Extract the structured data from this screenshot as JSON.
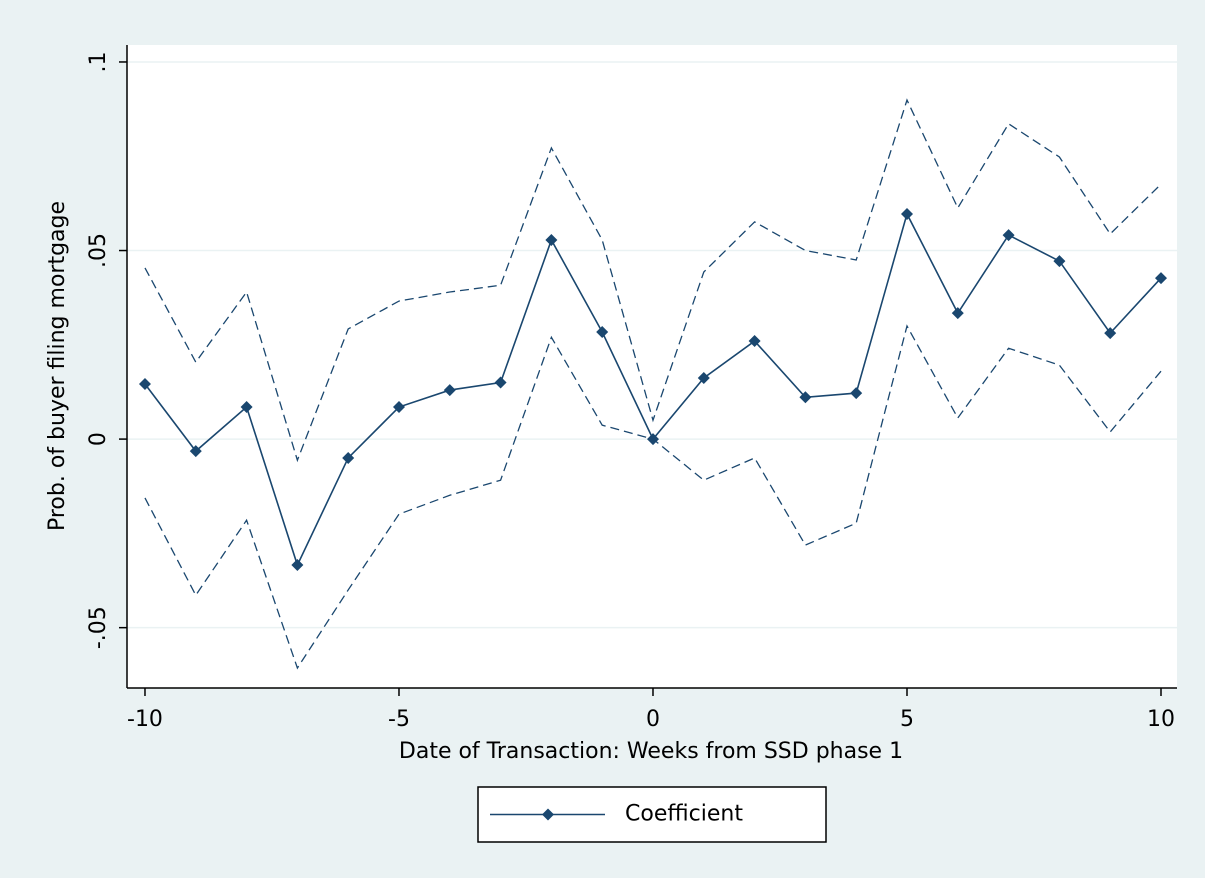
{
  "chart_data": {
    "type": "line",
    "x_label": "Date of Transaction: Weeks from SSD phase 1",
    "y_label": "Prob. of buyer filing mortgage",
    "x": [
      -10,
      -9,
      -8,
      -7,
      -6,
      -5,
      -4,
      -3,
      -2,
      -1,
      0,
      1,
      2,
      3,
      4,
      5,
      6,
      7,
      8,
      9,
      10
    ],
    "series": [
      {
        "name": "Coefficient",
        "color": "#1a476f",
        "marker": "diamond",
        "dashed": false,
        "values": [
          0.0146,
          -0.0032,
          0.0085,
          -0.0334,
          -0.005,
          0.0085,
          0.013,
          0.015,
          0.0528,
          0.0284,
          0,
          0.0162,
          0.026,
          0.0111,
          0.0122,
          0.0597,
          0.0334,
          0.0541,
          0.0472,
          0.0281,
          0.0427
        ]
      },
      {
        "color": "#1a476f",
        "dashed": true,
        "values": [
          0.0454,
          0.0204,
          0.039,
          -0.0056,
          0.0292,
          0.0366,
          0.039,
          0.0408,
          0.0772,
          0.0528,
          0.005,
          0.0443,
          0.0576,
          0.05,
          0.0475,
          0.0899,
          0.0613,
          0.0836,
          0.0748,
          0.0544,
          0.0676
        ]
      },
      {
        "color": "#1a476f",
        "dashed": true,
        "values": [
          -0.0156,
          -0.0414,
          -0.0215,
          -0.0607,
          -0.04,
          -0.0199,
          -0.0149,
          -0.0109,
          0.027,
          0.0037,
          0,
          -0.0109,
          -0.005,
          -0.0281,
          -0.0223,
          0.03,
          0.0056,
          0.0241,
          0.0196,
          0.0019,
          0.018
        ]
      }
    ],
    "xlim": [
      -10.354,
      10.315
    ],
    "xticks": [
      -10,
      -5,
      0,
      5,
      10
    ],
    "ylim": [
      -0.066,
      0.1045
    ],
    "yticks": [
      {
        "value": -0.05,
        "label": "-.05"
      },
      0,
      {
        "value": 0.05,
        "label": ".05"
      },
      {
        "value": 0.1,
        "label": ".1"
      }
    ],
    "grid": true,
    "legend": "bottom"
  }
}
